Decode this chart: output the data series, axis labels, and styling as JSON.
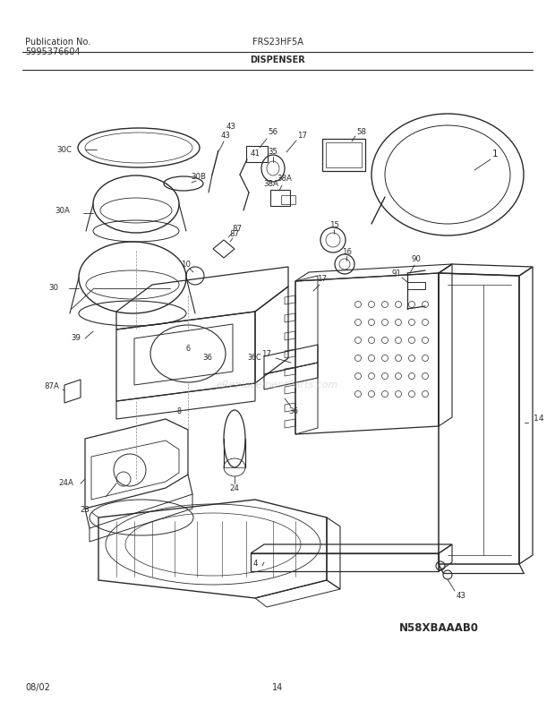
{
  "title_left_line1": "Publication No.",
  "title_left_line2": "5995376604",
  "title_center": "FRS23HF5A",
  "title_sub": "DISPENSER",
  "footer_left": "08/02",
  "footer_center": "14",
  "diagram_code": "N58XBAAAB0",
  "bg_color": "#ffffff",
  "line_color": "#2a2a2a",
  "text_color": "#2a2a2a",
  "header_font_size": 7.0,
  "label_font_size": 6.2,
  "diagram_code_font_size": 8.5
}
